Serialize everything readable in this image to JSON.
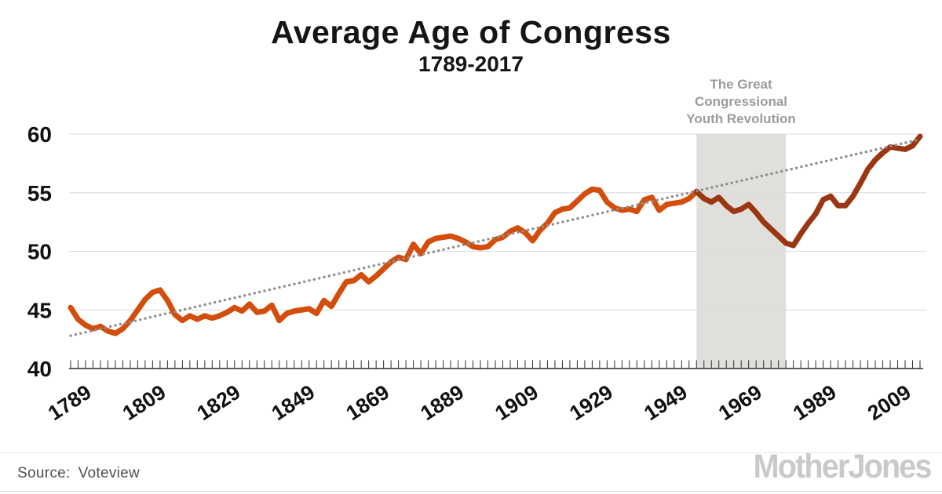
{
  "header": {
    "title": "Average Age of Congress",
    "subtitle": "1789-2017"
  },
  "annotation": {
    "line1": "The Great",
    "line2": "Congressional",
    "line3": "Youth Revolution",
    "color": "#9b9b9b"
  },
  "footer": {
    "source_label": "Source:",
    "source_value": "Voteview",
    "logo_text": "MotherJones"
  },
  "colors": {
    "line_early": "#d34d0c",
    "line_late": "#9a3611",
    "trend": "#8f8f8f",
    "band": "#e1dfdc",
    "gridline": "#dcdcdc",
    "axis": "#2e2e2e",
    "tick_label": "#111111"
  },
  "chart_data": {
    "type": "line",
    "title": "Average Age of Congress",
    "subtitle": "1789-2017",
    "xlabel": "",
    "ylabel": "",
    "xlim": [
      1789,
      2017
    ],
    "ylim": [
      40,
      60
    ],
    "y_ticks": [
      40,
      45,
      50,
      55,
      60
    ],
    "x_ticks_labeled": [
      1789,
      1809,
      1829,
      1849,
      1869,
      1889,
      1909,
      1929,
      1949,
      1969,
      1989,
      2009
    ],
    "x_tick_minor_step": 2,
    "grid": "horizontal",
    "legend": "none",
    "series": [
      {
        "name": "Average age of Congress",
        "color_change_year": 1957,
        "x": [
          1789,
          1791,
          1793,
          1795,
          1797,
          1799,
          1801,
          1803,
          1805,
          1807,
          1809,
          1811,
          1813,
          1815,
          1817,
          1819,
          1821,
          1823,
          1825,
          1827,
          1829,
          1831,
          1833,
          1835,
          1837,
          1839,
          1841,
          1843,
          1845,
          1847,
          1849,
          1851,
          1853,
          1855,
          1857,
          1859,
          1861,
          1863,
          1865,
          1867,
          1869,
          1871,
          1873,
          1875,
          1877,
          1879,
          1881,
          1883,
          1885,
          1887,
          1889,
          1891,
          1893,
          1895,
          1897,
          1899,
          1901,
          1903,
          1905,
          1907,
          1909,
          1911,
          1913,
          1915,
          1917,
          1919,
          1921,
          1923,
          1925,
          1927,
          1929,
          1931,
          1933,
          1935,
          1937,
          1939,
          1941,
          1943,
          1945,
          1947,
          1949,
          1951,
          1953,
          1955,
          1957,
          1959,
          1961,
          1963,
          1965,
          1967,
          1969,
          1971,
          1973,
          1975,
          1977,
          1979,
          1981,
          1983,
          1985,
          1987,
          1989,
          1991,
          1993,
          1995,
          1997,
          1999,
          2001,
          2003,
          2005,
          2007,
          2009,
          2011,
          2013,
          2015,
          2017
        ],
        "y": [
          45.2,
          44.2,
          43.7,
          43.4,
          43.6,
          43.2,
          43.0,
          43.4,
          44.1,
          45.0,
          45.9,
          46.5,
          46.7,
          45.8,
          44.6,
          44.1,
          44.5,
          44.2,
          44.5,
          44.3,
          44.5,
          44.8,
          45.2,
          44.9,
          45.5,
          44.8,
          44.9,
          45.4,
          44.1,
          44.7,
          44.9,
          45.0,
          45.1,
          44.7,
          45.8,
          45.3,
          46.4,
          47.4,
          47.5,
          48.0,
          47.4,
          47.9,
          48.5,
          49.1,
          49.5,
          49.3,
          50.6,
          49.8,
          50.8,
          51.1,
          51.2,
          51.3,
          51.1,
          50.8,
          50.4,
          50.3,
          50.4,
          51.0,
          51.2,
          51.7,
          52.0,
          51.6,
          50.9,
          51.8,
          52.4,
          53.3,
          53.6,
          53.7,
          54.3,
          54.9,
          55.3,
          55.2,
          54.2,
          53.7,
          53.5,
          53.6,
          53.4,
          54.4,
          54.6,
          53.5,
          54.0,
          54.1,
          54.2,
          54.5,
          55.1,
          54.5,
          54.2,
          54.6,
          53.9,
          53.4,
          53.6,
          54.0,
          53.3,
          52.5,
          51.9,
          51.3,
          50.7,
          50.5,
          51.5,
          52.4,
          53.2,
          54.4,
          54.7,
          53.9,
          53.9,
          54.7,
          55.8,
          57.0,
          57.8,
          58.4,
          58.9,
          58.8,
          58.7,
          59.0,
          59.8
        ]
      }
    ],
    "trend_line": {
      "style": "dotted",
      "points": [
        [
          1789,
          42.8
        ],
        [
          2017,
          59.55
        ]
      ]
    },
    "highlight_band": {
      "label": "The Great Congressional Youth Revolution",
      "x_start": 1957,
      "x_end": 1981
    }
  }
}
